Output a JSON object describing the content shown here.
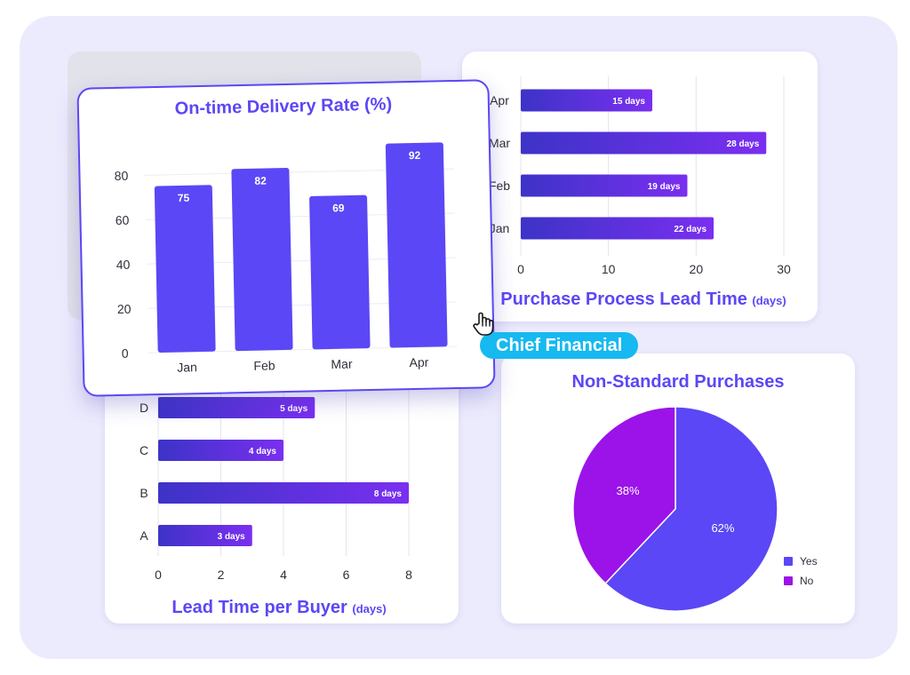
{
  "colors": {
    "accent": "#5b47f5",
    "bar_dark": "#3d33c7",
    "bar_purple": "#7a2ff0",
    "pie_yes": "#5b47f5",
    "pie_no": "#9b13e8",
    "badge": "#16b9f0",
    "background": "#ecebfd"
  },
  "badge": {
    "label": "Chief Financial"
  },
  "cursor": {
    "icon": "hand-pointer-icon"
  },
  "chart_data": [
    {
      "id": "otd",
      "type": "bar",
      "title": "On-time Delivery Rate (%)",
      "categories": [
        "Jan",
        "Feb",
        "Mar",
        "Apr"
      ],
      "values": [
        75,
        82,
        69,
        92
      ],
      "ylim": [
        0,
        100
      ],
      "yticks": [
        0,
        20,
        40,
        60,
        80
      ],
      "grid": true,
      "xlabel": "",
      "ylabel": ""
    },
    {
      "id": "purchase_lead",
      "type": "bar",
      "orientation": "horizontal",
      "title": "Purchase Process Lead Time",
      "title_unit": "(days)",
      "categories": [
        "Apr",
        "Mar",
        "Feb",
        "Jan"
      ],
      "values": [
        15,
        28,
        19,
        22
      ],
      "value_labels": [
        "15 days",
        "28 days",
        "19 days",
        "22 days"
      ],
      "xlim": [
        0,
        30
      ],
      "xticks": [
        0,
        10,
        20,
        30
      ],
      "grid": true
    },
    {
      "id": "buyer_lead",
      "type": "bar",
      "orientation": "horizontal",
      "title": "Lead Time per Buyer",
      "title_unit": "(days)",
      "categories": [
        "D",
        "C",
        "B",
        "A"
      ],
      "values": [
        5,
        4,
        8,
        3
      ],
      "value_labels": [
        "5 days",
        "4 days",
        "8 days",
        "3 days"
      ],
      "xlim": [
        0,
        8
      ],
      "xticks": [
        0,
        2,
        4,
        6,
        8
      ],
      "grid": true
    },
    {
      "id": "non_standard",
      "type": "pie",
      "title": "Non-Standard Purchases",
      "categories": [
        "Yes",
        "No"
      ],
      "values": [
        62,
        38
      ],
      "value_labels": [
        "62%",
        "38%"
      ],
      "legend": "bottom-right"
    }
  ]
}
